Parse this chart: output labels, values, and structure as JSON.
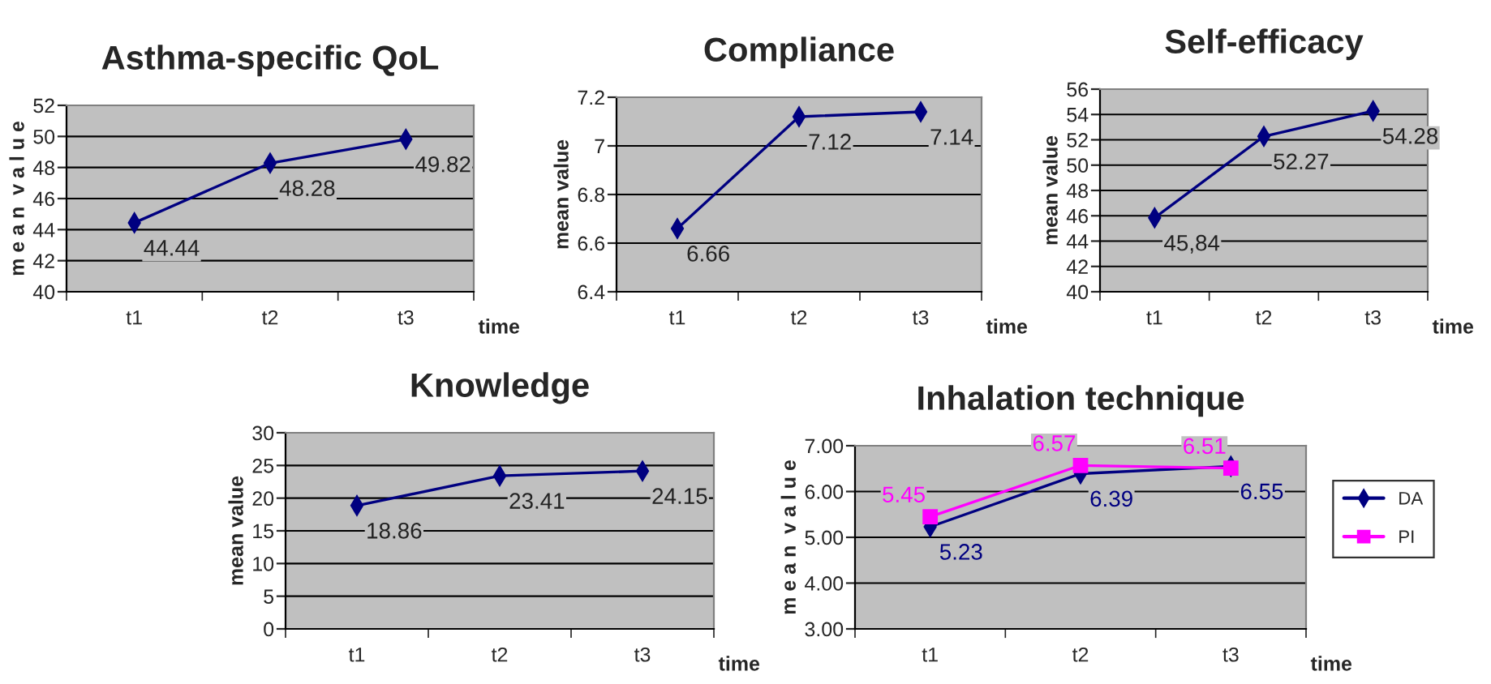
{
  "chart_data": [
    {
      "type": "line",
      "title": "Asthma-specific QoL",
      "xlabel": "time",
      "ylabel": "m e a n  v a l u e",
      "categories": [
        "t1",
        "t2",
        "t3"
      ],
      "series": [
        {
          "color": "#000080",
          "values": [
            44.44,
            48.28,
            49.82
          ],
          "value_labels": [
            "44.44",
            "48.28",
            "49.82"
          ]
        }
      ],
      "ylim": [
        40,
        52
      ],
      "yticks": [
        40,
        42,
        44,
        46,
        48,
        50,
        52
      ],
      "grid": "y",
      "marker": "diamond",
      "legend": false
    },
    {
      "type": "line",
      "title": "Compliance",
      "xlabel": "time",
      "ylabel": "mean value",
      "categories": [
        "t1",
        "t2",
        "t3"
      ],
      "series": [
        {
          "color": "#000080",
          "values": [
            6.66,
            7.12,
            7.14
          ],
          "value_labels": [
            "6.66",
            "7.12",
            "7.14"
          ]
        }
      ],
      "ylim": [
        6.4,
        7.2
      ],
      "yticks": [
        6.4,
        6.6,
        6.8,
        {
          "value": 7,
          "label": "7"
        },
        7.2
      ],
      "grid": "y",
      "marker": "diamond",
      "legend": false
    },
    {
      "type": "line",
      "title": "Self-efficacy",
      "xlabel": "time",
      "ylabel": "mean value",
      "categories": [
        "t1",
        "t2",
        "t3"
      ],
      "series": [
        {
          "color": "#000080",
          "values": [
            45.84,
            52.27,
            54.28
          ],
          "value_labels": [
            "45,84",
            "52.27",
            "54.28"
          ]
        }
      ],
      "ylim": [
        40,
        56
      ],
      "yticks": [
        40,
        42,
        44,
        46,
        48,
        50,
        52,
        54,
        56
      ],
      "grid": "y",
      "marker": "diamond",
      "legend": false
    },
    {
      "type": "line",
      "title": "Knowledge",
      "xlabel": "time",
      "ylabel": "mean value",
      "categories": [
        "t1",
        "t2",
        "t3"
      ],
      "series": [
        {
          "color": "#000080",
          "values": [
            18.86,
            23.41,
            24.15
          ],
          "value_labels": [
            "18.86",
            "23.41",
            "24.15"
          ]
        }
      ],
      "ylim": [
        0,
        30
      ],
      "yticks": [
        0,
        5,
        10,
        15,
        20,
        25,
        30
      ],
      "grid": "y",
      "marker": "diamond",
      "legend": false
    },
    {
      "type": "line",
      "title": "Inhalation technique",
      "xlabel": "time",
      "ylabel": "m e a n  v a l u e",
      "categories": [
        "t1",
        "t2",
        "t3"
      ],
      "series": [
        {
          "name": "DA",
          "color": "#000080",
          "marker": "diamond",
          "values": [
            5.23,
            6.39,
            6.55
          ],
          "value_labels": [
            "5.23",
            "6.39",
            "6.55"
          ]
        },
        {
          "name": "PI",
          "color": "#ff00ff",
          "marker": "square",
          "values": [
            5.45,
            6.57,
            6.51
          ],
          "value_labels": [
            "5.45",
            "6.57",
            "6.51"
          ]
        }
      ],
      "ylim": [
        3,
        7
      ],
      "yticks": [
        {
          "value": 3,
          "label": "3.00"
        },
        {
          "value": 4,
          "label": "4.00"
        },
        {
          "value": 5,
          "label": "5.00"
        },
        {
          "value": 6,
          "label": "6.00"
        },
        {
          "value": 7,
          "label": "7.00"
        }
      ],
      "grid": "y",
      "legend": "right"
    }
  ]
}
